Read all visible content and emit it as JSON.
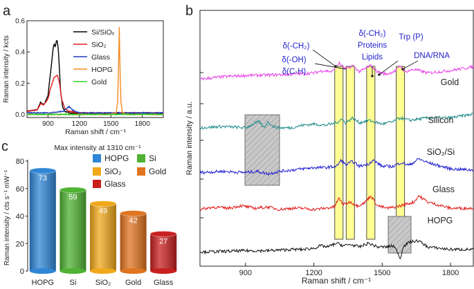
{
  "panels": {
    "a": {
      "label": "a"
    },
    "b": {
      "label": "b"
    },
    "c": {
      "label": "c"
    }
  },
  "chart_data": [
    {
      "panel": "a",
      "type": "line",
      "ylabel": "Raman intensity / kcts",
      "xlabel": "Raman shift / cm⁻¹",
      "xlim": [
        700,
        2000
      ],
      "ylim": [
        -0.02,
        0.6
      ],
      "xticks": [
        900,
        1200,
        1500,
        1800
      ],
      "yticks": [
        0.0,
        0.2,
        0.4,
        0.6
      ],
      "xtick_labels": [
        "900",
        "1200",
        "1500",
        "1800"
      ],
      "ytick_labels": [
        "0.0",
        "0.2",
        "0.4",
        "0.6"
      ],
      "legend": [
        "Si/SiOₓ",
        "SiO₂",
        "Glass",
        "HOPG",
        "Gold"
      ],
      "series": [
        {
          "name": "Si/SiOₓ",
          "color": "#000000",
          "x": [
            700,
            800,
            830,
            860,
            900,
            930,
            950,
            960,
            970,
            980,
            990,
            1000,
            1010,
            1020,
            1040,
            1060,
            1100,
            1200,
            1400,
            1600,
            1800,
            2000
          ],
          "y": [
            0.02,
            0.03,
            0.08,
            0.06,
            0.12,
            0.3,
            0.43,
            0.45,
            0.43,
            0.47,
            0.47,
            0.4,
            0.28,
            0.15,
            0.05,
            0.02,
            0.01,
            0.005,
            0.005,
            0.005,
            0.005,
            0.005
          ]
        },
        {
          "name": "SiO₂",
          "color": "#e31a1c",
          "x": [
            700,
            800,
            830,
            860,
            900,
            930,
            960,
            990,
            1010,
            1030,
            1060,
            1100,
            1200,
            1400,
            1600,
            1800,
            2000
          ],
          "y": [
            0.02,
            0.03,
            0.07,
            0.06,
            0.1,
            0.18,
            0.24,
            0.25,
            0.2,
            0.1,
            0.04,
            0.02,
            0.01,
            0.01,
            0.01,
            0.01,
            0.01
          ]
        },
        {
          "name": "Glass",
          "color": "#1f3fbf",
          "x": [
            700,
            900,
            1000,
            1050,
            1080,
            1100,
            1130,
            1200,
            1400,
            1600,
            1800,
            2000
          ],
          "y": [
            0.01,
            0.01,
            0.015,
            0.02,
            0.04,
            0.05,
            0.03,
            0.01,
            0.01,
            0.01,
            0.01,
            0.01
          ]
        },
        {
          "name": "HOPG",
          "color": "#f5891f",
          "x": [
            700,
            1500,
            1550,
            1565,
            1575,
            1580,
            1585,
            1595,
            1610,
            1650,
            2000
          ],
          "y": [
            0.0,
            0.0,
            0.01,
            0.08,
            0.35,
            0.56,
            0.35,
            0.08,
            0.01,
            0.0,
            0.0
          ]
        },
        {
          "name": "Gold",
          "color": "#2bd22b",
          "x": [
            700,
            2000
          ],
          "y": [
            0.0,
            0.0
          ]
        }
      ]
    },
    {
      "panel": "b",
      "type": "line",
      "ylabel": "Raman intensity / a.u.",
      "xlabel": "Raman shift / cm⁻¹",
      "xlim": [
        700,
        1900
      ],
      "xticks": [
        900,
        1200,
        1500,
        1800
      ],
      "xtick_labels": [
        "900",
        "1200",
        "1500",
        "1800"
      ],
      "series": [
        {
          "name": "Gold",
          "color": "#e83ce8",
          "offset": 4,
          "x": [
            700,
            800,
            900,
            1000,
            1100,
            1200,
            1240,
            1280,
            1310,
            1340,
            1370,
            1400,
            1450,
            1480,
            1520,
            1560,
            1580,
            1600,
            1640,
            1700,
            1800,
            1900
          ],
          "y": [
            0.15,
            0.25,
            0.3,
            0.32,
            0.35,
            0.4,
            0.5,
            0.45,
            0.8,
            0.55,
            0.7,
            0.45,
            0.7,
            0.45,
            0.35,
            0.5,
            0.7,
            0.45,
            0.55,
            0.4,
            0.5,
            0.65
          ]
        },
        {
          "name": "Silicon",
          "color": "#1f8a8a",
          "offset": 3,
          "x": [
            700,
            800,
            900,
            960,
            980,
            1000,
            1020,
            1050,
            1100,
            1150,
            1200,
            1250,
            1300,
            1320,
            1340,
            1370,
            1400,
            1440,
            1460,
            1500,
            1550,
            1580,
            1620,
            1700,
            1800,
            1900
          ],
          "y": [
            0.2,
            0.25,
            0.2,
            0.45,
            0.2,
            0.45,
            0.25,
            0.2,
            0.2,
            0.3,
            0.35,
            0.3,
            0.4,
            0.55,
            0.4,
            0.6,
            0.4,
            0.5,
            0.45,
            0.35,
            0.45,
            0.6,
            0.5,
            0.6,
            0.6,
            0.75
          ]
        },
        {
          "name": "SiO₂/Si",
          "color": "#1a1ad0",
          "offset": 2,
          "x": [
            700,
            800,
            900,
            950,
            1000,
            1050,
            1100,
            1150,
            1200,
            1250,
            1300,
            1320,
            1340,
            1370,
            1400,
            1440,
            1460,
            1500,
            1550,
            1580,
            1620,
            1660,
            1700,
            1800,
            1900
          ],
          "y": [
            0.15,
            0.2,
            0.15,
            0.2,
            0.1,
            0.2,
            0.25,
            0.3,
            0.35,
            0.35,
            0.4,
            0.65,
            0.45,
            0.6,
            0.4,
            0.5,
            0.65,
            0.4,
            0.4,
            0.55,
            0.45,
            0.7,
            0.55,
            0.3,
            0.25
          ]
        },
        {
          "name": "Glass",
          "color": "#e01515",
          "offset": 1,
          "x": [
            700,
            760,
            820,
            880,
            940,
            1000,
            1050,
            1100,
            1150,
            1200,
            1250,
            1290,
            1310,
            1330,
            1360,
            1390,
            1420,
            1450,
            1480,
            1520,
            1560,
            1600,
            1640,
            1660,
            1700,
            1800,
            1900
          ],
          "y": [
            0.25,
            0.35,
            0.3,
            0.4,
            0.3,
            0.35,
            0.25,
            0.3,
            0.3,
            0.25,
            0.3,
            0.35,
            0.7,
            0.45,
            0.55,
            0.4,
            0.5,
            0.8,
            0.4,
            0.3,
            0.35,
            0.45,
            0.55,
            0.8,
            0.55,
            0.3,
            0.3
          ]
        },
        {
          "name": "HOPG",
          "color": "#111111",
          "offset": 0,
          "x": [
            700,
            800,
            900,
            1000,
            1100,
            1150,
            1200,
            1230,
            1260,
            1300,
            1330,
            1360,
            1400,
            1440,
            1480,
            1520,
            1550,
            1570,
            1580,
            1590,
            1620,
            1660,
            1700,
            1800,
            1900
          ],
          "y": [
            0.1,
            0.12,
            0.15,
            0.15,
            0.2,
            0.2,
            0.25,
            0.35,
            0.3,
            0.45,
            0.35,
            0.4,
            0.3,
            0.45,
            0.3,
            0.3,
            0.35,
            0.05,
            -0.2,
            0.3,
            0.5,
            0.55,
            0.3,
            0.2,
            0.2
          ]
        }
      ],
      "highlight_bands": [
        1310,
        1360,
        1450,
        1580
      ],
      "annotations": [
        {
          "lines": [
            "δ(-CH₂)"
          ],
          "color": "#2222cc"
        },
        {
          "lines": [
            "δ(-OH)",
            "δ(C-H)"
          ],
          "color": "#2222cc"
        },
        {
          "lines": [
            "δ(-CH₂)",
            "Proteins",
            "Lipids"
          ],
          "color": "#2222cc"
        },
        {
          "lines": [
            "Trp (P)"
          ],
          "color": "#2222cc"
        },
        {
          "lines": [
            "DNA/RNA"
          ],
          "color": "#2222cc"
        }
      ],
      "trace_labels": [
        "Gold",
        "Silicon",
        "SiO₂/Si",
        "Glass",
        "HOPG"
      ]
    },
    {
      "panel": "c",
      "type": "bar",
      "title": "Max intensity at 1310 cm⁻¹",
      "ylabel": "Raman intensity / cts s⁻¹ mW⁻¹",
      "ylim": [
        0,
        80
      ],
      "yticks": [
        0,
        20,
        40,
        60,
        80
      ],
      "categories": [
        "HOPG",
        "Si",
        "SiO₂",
        "Gold",
        "Glass"
      ],
      "values": [
        73,
        59,
        49,
        42,
        27
      ],
      "colors": [
        "#2f86d6",
        "#4fb233",
        "#f0a81a",
        "#e07420",
        "#c8201f"
      ],
      "legend": [
        "HOPG",
        "Si",
        "SiO₂",
        "Gold",
        "Glass"
      ]
    }
  ]
}
